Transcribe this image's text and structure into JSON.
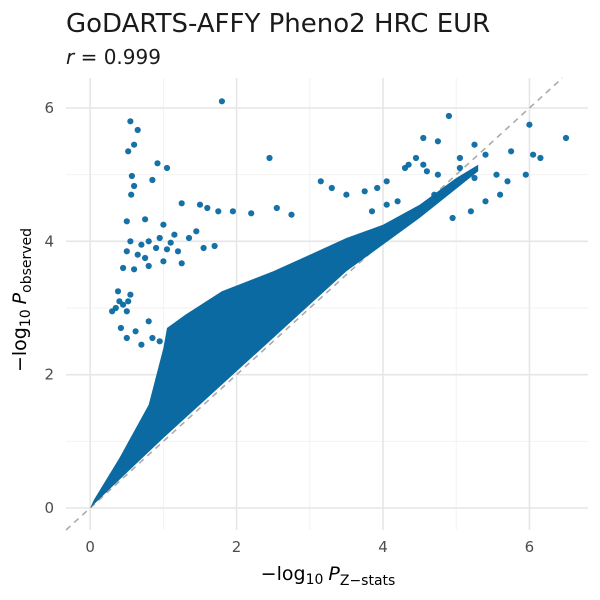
{
  "chart_data": {
    "type": "scatter",
    "title": "GoDARTS-AFFY Pheno2 HRC EUR",
    "subtitle": {
      "var": "r",
      "value_text": " = 0.999"
    },
    "xlabel": {
      "prefix": "−log",
      "base": "10",
      "var": "P",
      "subscript": "Z−stats"
    },
    "ylabel": {
      "prefix": "−log",
      "base": "10",
      "var": "P",
      "subscript": "observed"
    },
    "xlim": [
      -0.33,
      6.8
    ],
    "ylim": [
      -0.33,
      6.45
    ],
    "x_ticks": [
      0,
      2,
      4,
      6
    ],
    "y_ticks": [
      0,
      2,
      4,
      6
    ],
    "grid": true,
    "reference_line": {
      "slope": 1,
      "intercept": 0,
      "style": "dashed",
      "color": "#aaaaaa"
    },
    "point_color": "#0a6aa1",
    "series": [
      {
        "points": [
          [
            1.8,
            6.1
          ],
          [
            0.55,
            5.8
          ],
          [
            0.65,
            5.67
          ],
          [
            0.52,
            5.35
          ],
          [
            0.6,
            5.45
          ],
          [
            0.92,
            5.17
          ],
          [
            1.05,
            5.1
          ],
          [
            0.57,
            4.98
          ],
          [
            0.85,
            4.92
          ],
          [
            0.56,
            4.7
          ],
          [
            0.6,
            4.83
          ],
          [
            1.25,
            4.57
          ],
          [
            1.5,
            4.55
          ],
          [
            1.6,
            4.5
          ],
          [
            1.75,
            4.45
          ],
          [
            1.95,
            4.45
          ],
          [
            2.2,
            4.42
          ],
          [
            2.55,
            4.5
          ],
          [
            2.75,
            4.4
          ],
          [
            0.5,
            4.3
          ],
          [
            0.75,
            4.33
          ],
          [
            1.0,
            4.25
          ],
          [
            1.15,
            4.1
          ],
          [
            1.35,
            4.05
          ],
          [
            1.45,
            4.15
          ],
          [
            0.55,
            4.0
          ],
          [
            0.7,
            3.95
          ],
          [
            0.8,
            4.0
          ],
          [
            0.95,
            4.05
          ],
          [
            1.1,
            3.98
          ],
          [
            0.5,
            3.85
          ],
          [
            0.65,
            3.8
          ],
          [
            0.75,
            3.75
          ],
          [
            0.9,
            3.9
          ],
          [
            1.05,
            3.88
          ],
          [
            1.2,
            3.85
          ],
          [
            1.55,
            3.9
          ],
          [
            1.7,
            3.93
          ],
          [
            0.45,
            3.6
          ],
          [
            0.6,
            3.58
          ],
          [
            0.8,
            3.63
          ],
          [
            1.0,
            3.7
          ],
          [
            1.25,
            3.67
          ],
          [
            0.4,
            3.1
          ],
          [
            0.35,
            3.0
          ],
          [
            0.5,
            2.95
          ],
          [
            0.55,
            3.2
          ],
          [
            0.38,
            3.25
          ],
          [
            0.45,
            3.05
          ],
          [
            0.52,
            3.1
          ],
          [
            0.3,
            2.95
          ],
          [
            0.42,
            2.7
          ],
          [
            0.62,
            2.65
          ],
          [
            0.8,
            2.8
          ],
          [
            0.5,
            2.55
          ],
          [
            0.85,
            2.55
          ],
          [
            0.95,
            2.5
          ],
          [
            0.7,
            2.45
          ],
          [
            2.45,
            5.25
          ],
          [
            3.15,
            4.9
          ],
          [
            3.3,
            4.8
          ],
          [
            3.5,
            4.7
          ],
          [
            3.75,
            4.75
          ],
          [
            3.92,
            4.8
          ],
          [
            4.05,
            4.9
          ],
          [
            4.35,
            5.15
          ],
          [
            4.45,
            5.25
          ],
          [
            4.3,
            5.1
          ],
          [
            4.6,
            5.05
          ],
          [
            4.75,
            5.0
          ],
          [
            5.05,
            5.1
          ],
          [
            5.4,
            5.3
          ],
          [
            5.55,
            5.0
          ],
          [
            5.7,
            4.9
          ],
          [
            4.55,
            5.15
          ],
          [
            4.9,
            5.88
          ],
          [
            4.55,
            5.55
          ],
          [
            4.75,
            5.5
          ],
          [
            5.25,
            5.45
          ],
          [
            5.05,
            5.25
          ],
          [
            5.75,
            5.35
          ],
          [
            6.05,
            5.3
          ],
          [
            6.15,
            5.25
          ],
          [
            6.5,
            5.55
          ],
          [
            6.0,
            5.75
          ],
          [
            4.05,
            4.55
          ],
          [
            4.2,
            4.6
          ],
          [
            3.85,
            4.45
          ],
          [
            4.7,
            4.7
          ],
          [
            4.95,
            4.35
          ],
          [
            5.2,
            4.45
          ],
          [
            5.4,
            4.6
          ],
          [
            5.6,
            4.7
          ],
          [
            5.25,
            4.95
          ],
          [
            5.95,
            5.0
          ]
        ]
      }
    ]
  }
}
